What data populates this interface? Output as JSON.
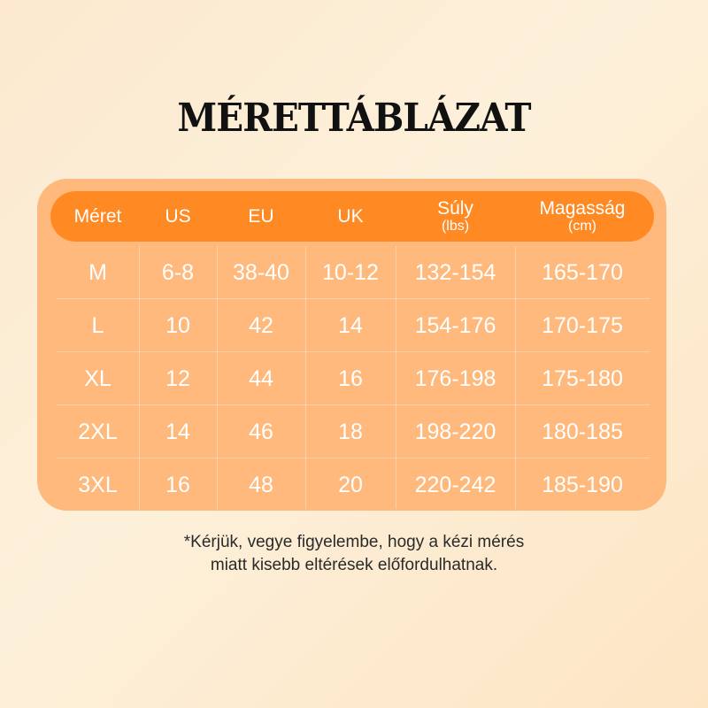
{
  "title": "MÉRETTÁBLÁZAT",
  "colors": {
    "header": "#ff8a24",
    "card": "#ffb97c"
  },
  "headers": [
    {
      "label": "Méret",
      "sub": ""
    },
    {
      "label": "US",
      "sub": ""
    },
    {
      "label": "EU",
      "sub": ""
    },
    {
      "label": "UK",
      "sub": ""
    },
    {
      "label": "Súly",
      "sub": "(lbs)"
    },
    {
      "label": "Magasság",
      "sub": "(cm)"
    }
  ],
  "rows": [
    [
      "M",
      "6-8",
      "38-40",
      "10-12",
      "132-154",
      "165-170"
    ],
    [
      "L",
      "10",
      "42",
      "14",
      "154-176",
      "170-175"
    ],
    [
      "XL",
      "12",
      "44",
      "16",
      "176-198",
      "175-180"
    ],
    [
      "2XL",
      "14",
      "46",
      "18",
      "198-220",
      "180-185"
    ],
    [
      "3XL",
      "16",
      "48",
      "20",
      "220-242",
      "185-190"
    ]
  ],
  "note": {
    "line1": "*Kérjük, vegye figyelembe, hogy a kézi mérés",
    "line2": "miatt kisebb eltérések előfordulhatnak."
  }
}
